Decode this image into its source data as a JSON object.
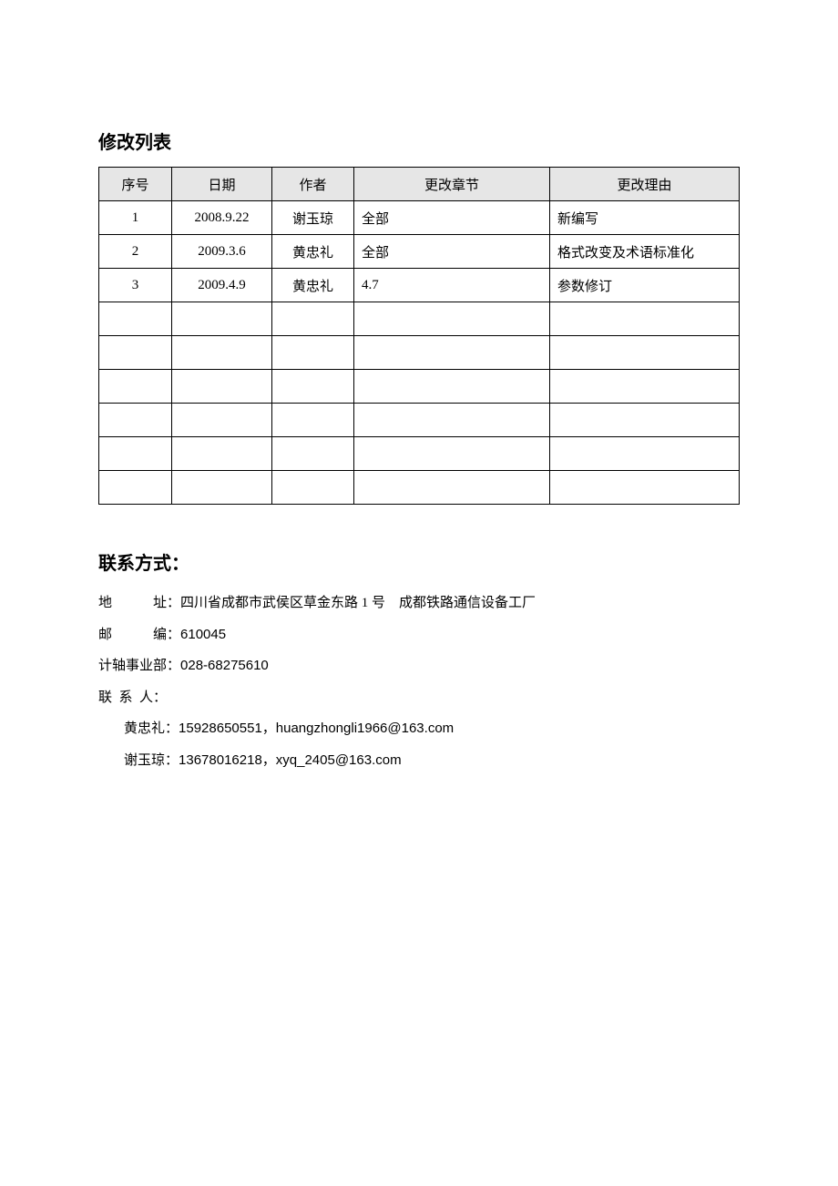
{
  "revision_list": {
    "title": "修改列表",
    "columns": [
      "序号",
      "日期",
      "作者",
      "更改章节",
      "更改理由"
    ],
    "rows": [
      {
        "num": "1",
        "date": "2008.9.22",
        "author": "谢玉琼",
        "section": "全部",
        "reason": "新编写"
      },
      {
        "num": "2",
        "date": "2009.3.6",
        "author": "黄忠礼",
        "section": "全部",
        "reason": "格式改变及术语标准化"
      },
      {
        "num": "3",
        "date": "2009.4.9",
        "author": "黄忠礼",
        "section": "4.7",
        "reason": "参数修订"
      },
      {
        "num": "",
        "date": "",
        "author": "",
        "section": "",
        "reason": ""
      },
      {
        "num": "",
        "date": "",
        "author": "",
        "section": "",
        "reason": ""
      },
      {
        "num": "",
        "date": "",
        "author": "",
        "section": "",
        "reason": ""
      },
      {
        "num": "",
        "date": "",
        "author": "",
        "section": "",
        "reason": ""
      },
      {
        "num": "",
        "date": "",
        "author": "",
        "section": "",
        "reason": ""
      },
      {
        "num": "",
        "date": "",
        "author": "",
        "section": "",
        "reason": ""
      }
    ]
  },
  "contact": {
    "title": "联系方式：",
    "address_label": "地　　　址：",
    "address_value": "四川省成都市武侯区草金东路 1 号　成都铁路通信设备工厂",
    "postcode_label": "邮　　　编：",
    "postcode_value": "610045",
    "dept_label": "计轴事业部：",
    "dept_value": "028-68275610",
    "person_label": "联 系 人：",
    "person1_name": "黄忠礼：",
    "person1_info": "15928650551，huangzhongli1966@163.com",
    "person2_name": "谢玉琼：",
    "person2_info": "13678016218，xyq_2405@163.com"
  },
  "colors": {
    "text": "#000000",
    "background": "#ffffff",
    "table_border": "#000000",
    "table_header_bg": "#e6e6e6"
  }
}
